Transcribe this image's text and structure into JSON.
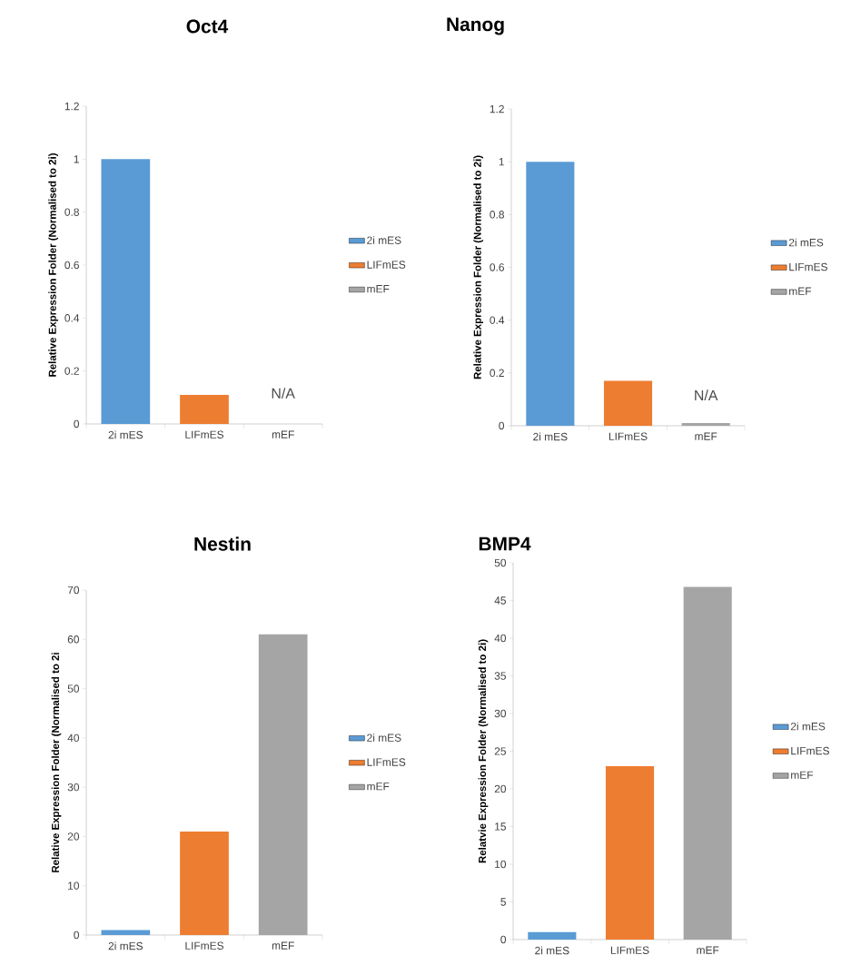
{
  "chart_data": [
    {
      "type": "bar",
      "title": "Oct4",
      "ylabel": "Relative Expression Folder (Normalised to 2i)",
      "categories": [
        "2i mES",
        "LIFmES",
        "mEF"
      ],
      "ylim": [
        0,
        1.2
      ],
      "yticks": [
        0,
        0.2,
        0.4,
        0.6,
        0.8,
        1,
        1.2
      ],
      "legend": "right",
      "annotations": [
        "N/A"
      ],
      "series": [
        {
          "name": "2i mES",
          "color": "#5b9bd5",
          "values": [
            1,
            null,
            null
          ]
        },
        {
          "name": "LIFmES",
          "color": "#ed7d31",
          "values": [
            null,
            0.11,
            null
          ]
        },
        {
          "name": "mEF",
          "color": "#a5a5a5",
          "values": [
            null,
            null,
            null
          ]
        }
      ]
    },
    {
      "type": "bar",
      "title": "Nanog",
      "ylabel": "Relative Expression Folder (Normalised to 2i)",
      "categories": [
        "2i mES",
        "LIFmES",
        "mEF"
      ],
      "ylim": [
        0,
        1.2
      ],
      "yticks": [
        0,
        0.2,
        0.4,
        0.6,
        0.8,
        1,
        1.2
      ],
      "legend": "right",
      "annotations": [
        "N/A"
      ],
      "series": [
        {
          "name": "2i mES",
          "color": "#5b9bd5",
          "values": [
            1,
            null,
            null
          ]
        },
        {
          "name": "LIFmES",
          "color": "#ed7d31",
          "values": [
            null,
            0.17,
            null
          ]
        },
        {
          "name": "mEF",
          "color": "#a5a5a5",
          "values": [
            null,
            null,
            0.01
          ]
        }
      ]
    },
    {
      "type": "bar",
      "title": "Nestin",
      "ylabel": "Relative Expression Folder (Normalised to 2i",
      "categories": [
        "2i mES",
        "LIFmES",
        "mEF"
      ],
      "ylim": [
        0,
        70
      ],
      "yticks": [
        0,
        10,
        20,
        30,
        40,
        50,
        60,
        70
      ],
      "legend": "right",
      "series": [
        {
          "name": "2i mES",
          "color": "#5b9bd5",
          "values": [
            1,
            null,
            null
          ]
        },
        {
          "name": "LIFmES",
          "color": "#ed7d31",
          "values": [
            null,
            21,
            null
          ]
        },
        {
          "name": "mEF",
          "color": "#a5a5a5",
          "values": [
            null,
            null,
            61
          ]
        }
      ]
    },
    {
      "type": "bar",
      "title": "BMP4",
      "ylabel": "Relatvie Expression Folder (Normalised to 2i)",
      "categories": [
        "2i mES",
        "LIFmES",
        "mEF"
      ],
      "ylim": [
        0,
        50
      ],
      "yticks": [
        0,
        5,
        10,
        15,
        20,
        25,
        30,
        35,
        40,
        45,
        50
      ],
      "legend": "right",
      "series": [
        {
          "name": "2i mES",
          "color": "#5b9bd5",
          "values": [
            1,
            null,
            null
          ]
        },
        {
          "name": "LIFmES",
          "color": "#ed7d31",
          "values": [
            null,
            23,
            null
          ]
        },
        {
          "name": "mEF",
          "color": "#a5a5a5",
          "values": [
            null,
            null,
            46.8
          ]
        }
      ]
    }
  ]
}
